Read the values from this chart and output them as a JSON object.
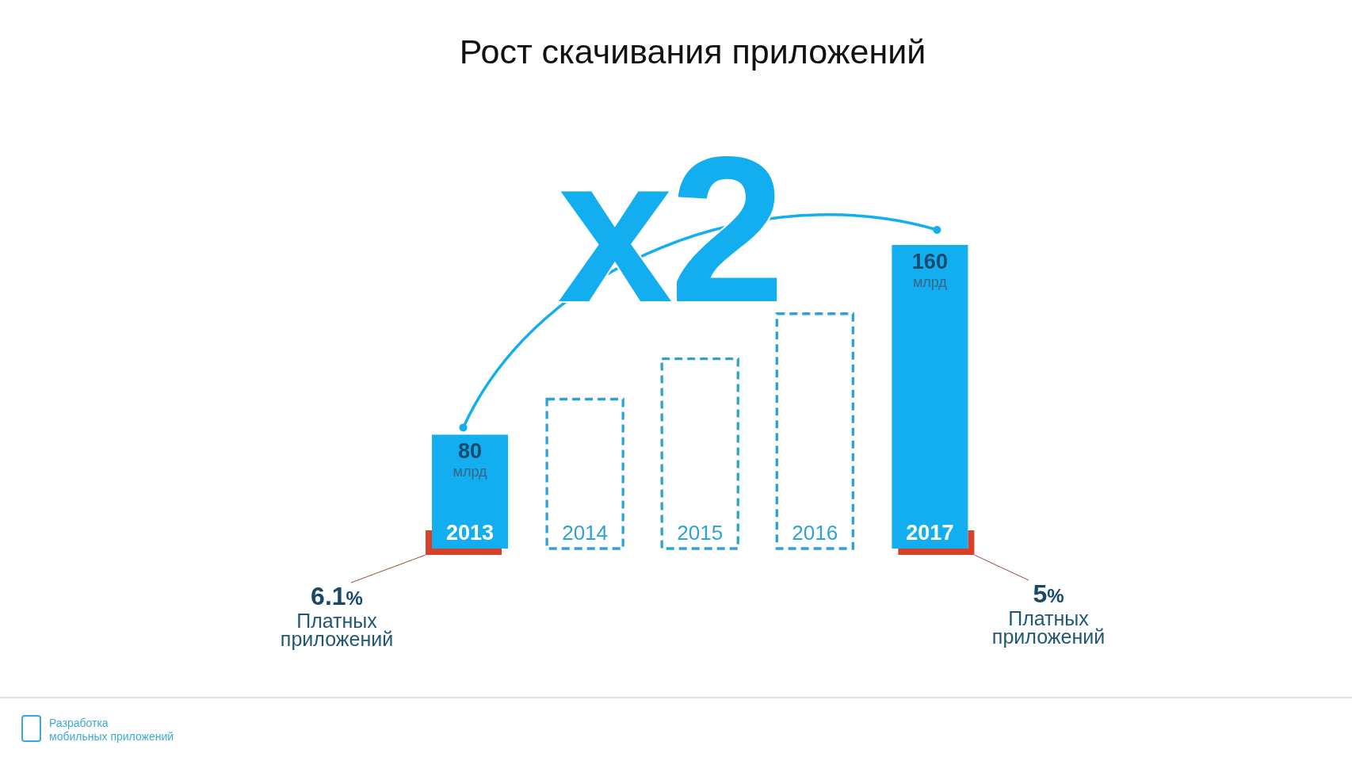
{
  "chart_data": {
    "type": "bar",
    "title": "Рост скачивания приложений",
    "stacked": true,
    "categories": [
      "2013",
      "2014",
      "2015",
      "2016",
      "2017"
    ],
    "series": [
      {
        "color": "#13aef0",
        "values": [
          80,
          null,
          null,
          null,
          160
        ],
        "value_labels": [
          "80 млрд",
          null,
          null,
          null,
          "160 млрд"
        ]
      },
      {
        "color": "#2ea2d6",
        "line_style": "dashed",
        "values": [
          null,
          95,
          112,
          131,
          null
        ]
      }
    ],
    "ylim": [
      32,
      160
    ],
    "tick_labels": "x",
    "annotations": [
      "x2",
      "6.1% Платных приложений",
      "5% Платных приложений",
      "Разработка мобильных приложений"
    ]
  }
}
